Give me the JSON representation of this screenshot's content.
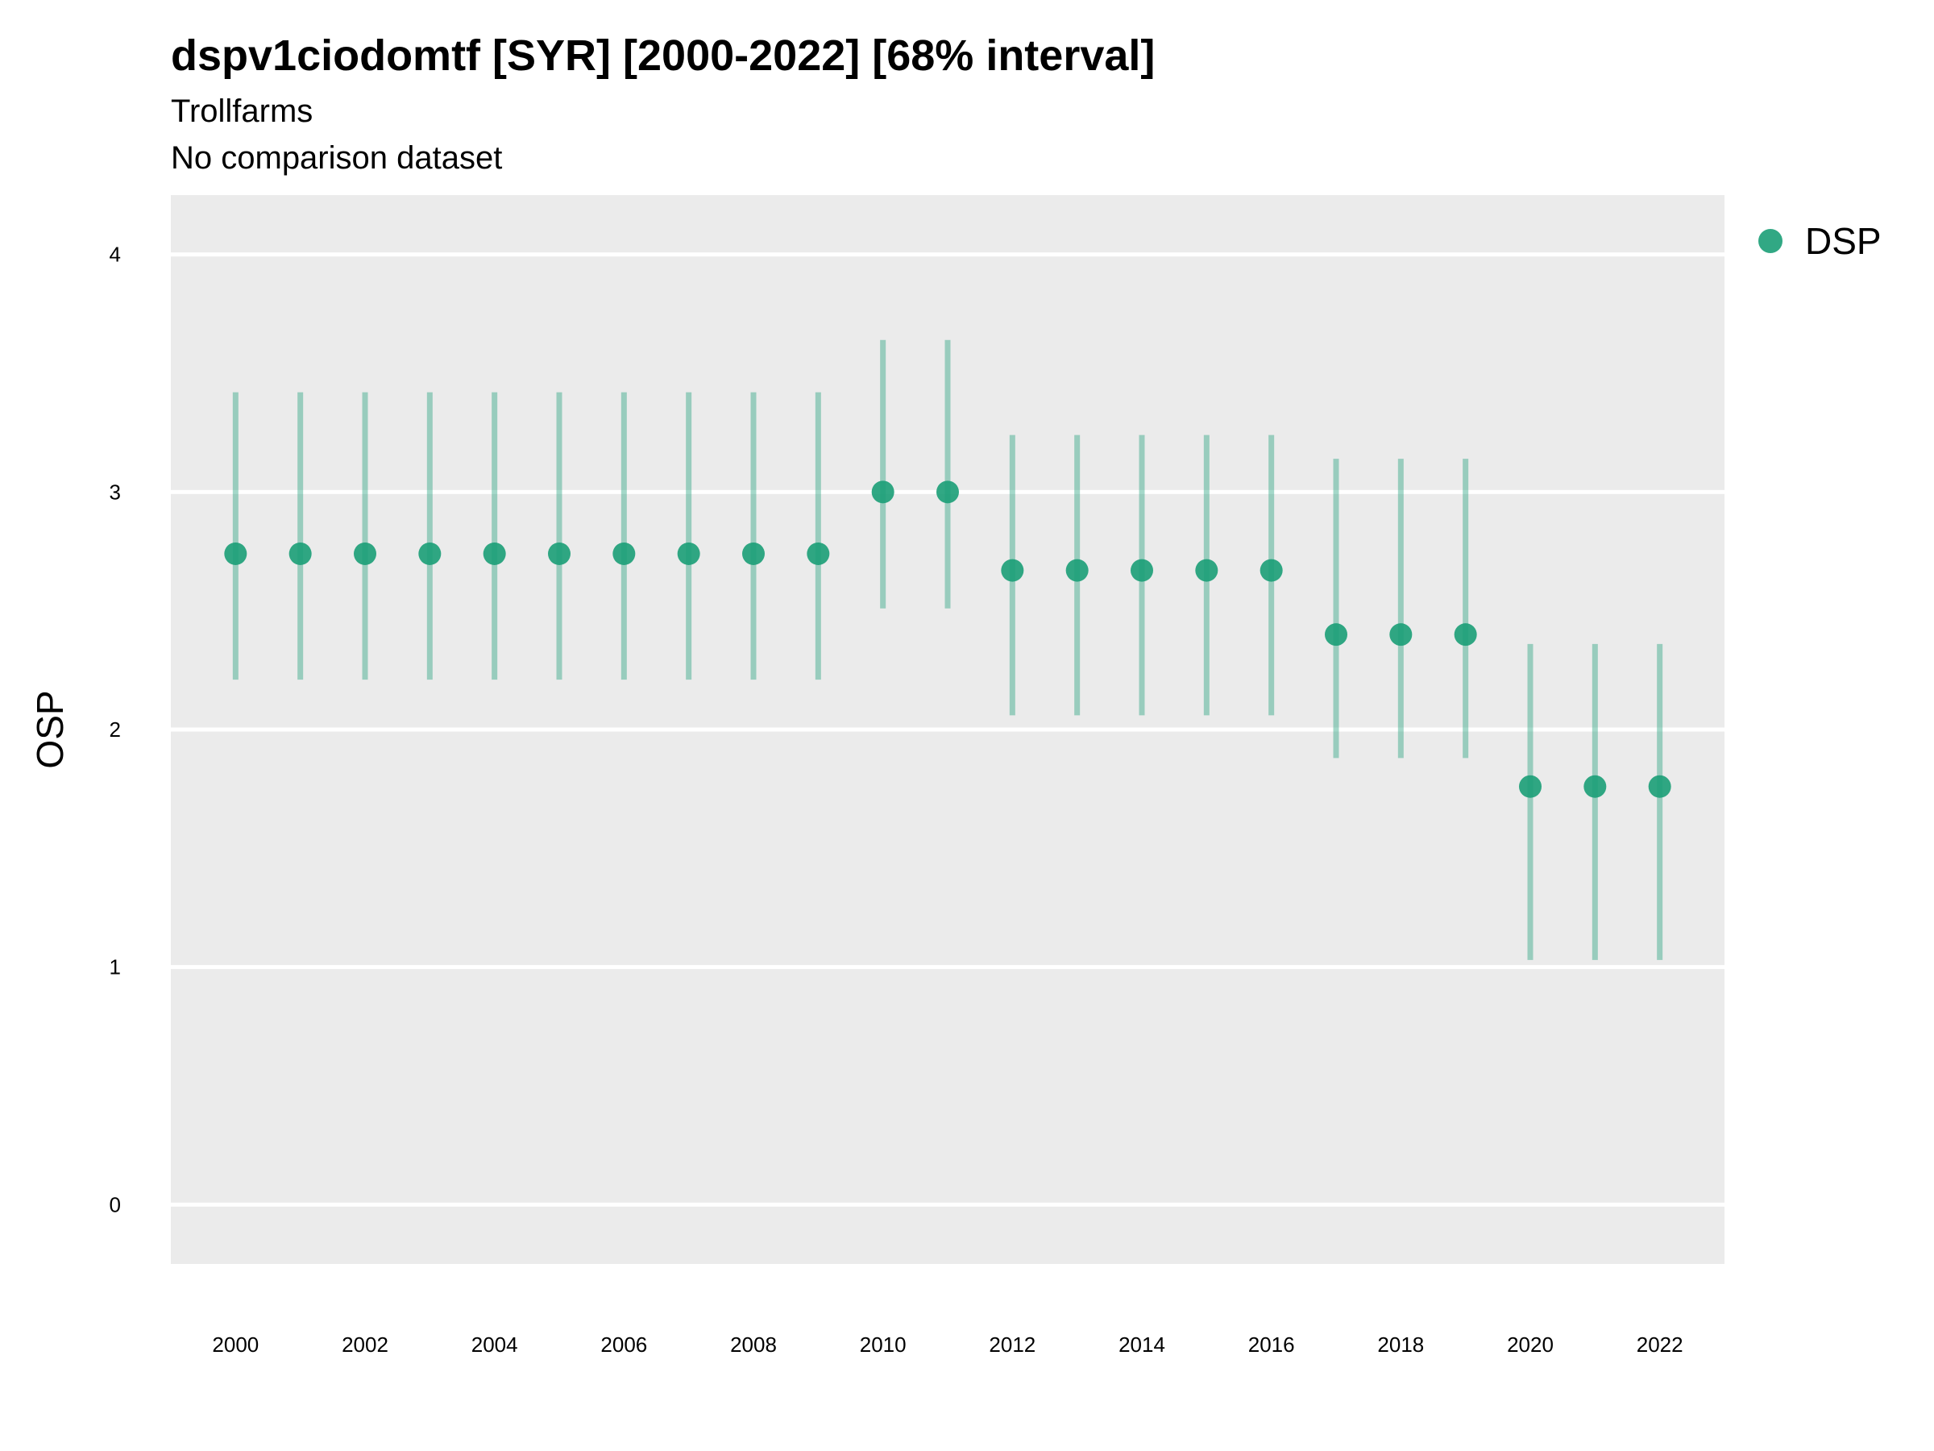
{
  "chart_data": {
    "type": "scatter",
    "title": "dspv1ciodomtf [SYR] [2000-2022] [68% interval]",
    "subtitle": "Trollfarms",
    "caption": "No comparison dataset",
    "xlabel": "",
    "ylabel": "OSP",
    "xlim": [
      1999,
      2023
    ],
    "ylim": [
      -0.25,
      4.25
    ],
    "xticks": [
      2000,
      2002,
      2004,
      2006,
      2008,
      2010,
      2012,
      2014,
      2016,
      2018,
      2020,
      2022
    ],
    "yticks": [
      0,
      1,
      2,
      3,
      4
    ],
    "grid": true,
    "legend_position": "right",
    "series": [
      {
        "name": "DSP",
        "color": "#1b9e77",
        "x": [
          2000,
          2001,
          2002,
          2003,
          2004,
          2005,
          2006,
          2007,
          2008,
          2009,
          2010,
          2011,
          2012,
          2013,
          2014,
          2015,
          2016,
          2017,
          2018,
          2019,
          2020,
          2021,
          2022
        ],
        "y": [
          2.74,
          2.74,
          2.74,
          2.74,
          2.74,
          2.74,
          2.74,
          2.74,
          2.74,
          2.74,
          3.0,
          3.0,
          2.67,
          2.67,
          2.67,
          2.67,
          2.67,
          2.4,
          2.4,
          2.4,
          1.76,
          1.76,
          1.76
        ],
        "lower": [
          2.21,
          2.21,
          2.21,
          2.21,
          2.21,
          2.21,
          2.21,
          2.21,
          2.21,
          2.21,
          2.51,
          2.51,
          2.06,
          2.06,
          2.06,
          2.06,
          2.06,
          1.88,
          1.88,
          1.88,
          1.03,
          1.03,
          1.03
        ],
        "upper": [
          3.42,
          3.42,
          3.42,
          3.42,
          3.42,
          3.42,
          3.42,
          3.42,
          3.42,
          3.42,
          3.64,
          3.64,
          3.24,
          3.24,
          3.24,
          3.24,
          3.24,
          3.14,
          3.14,
          3.14,
          2.36,
          2.36,
          2.36
        ]
      }
    ]
  }
}
